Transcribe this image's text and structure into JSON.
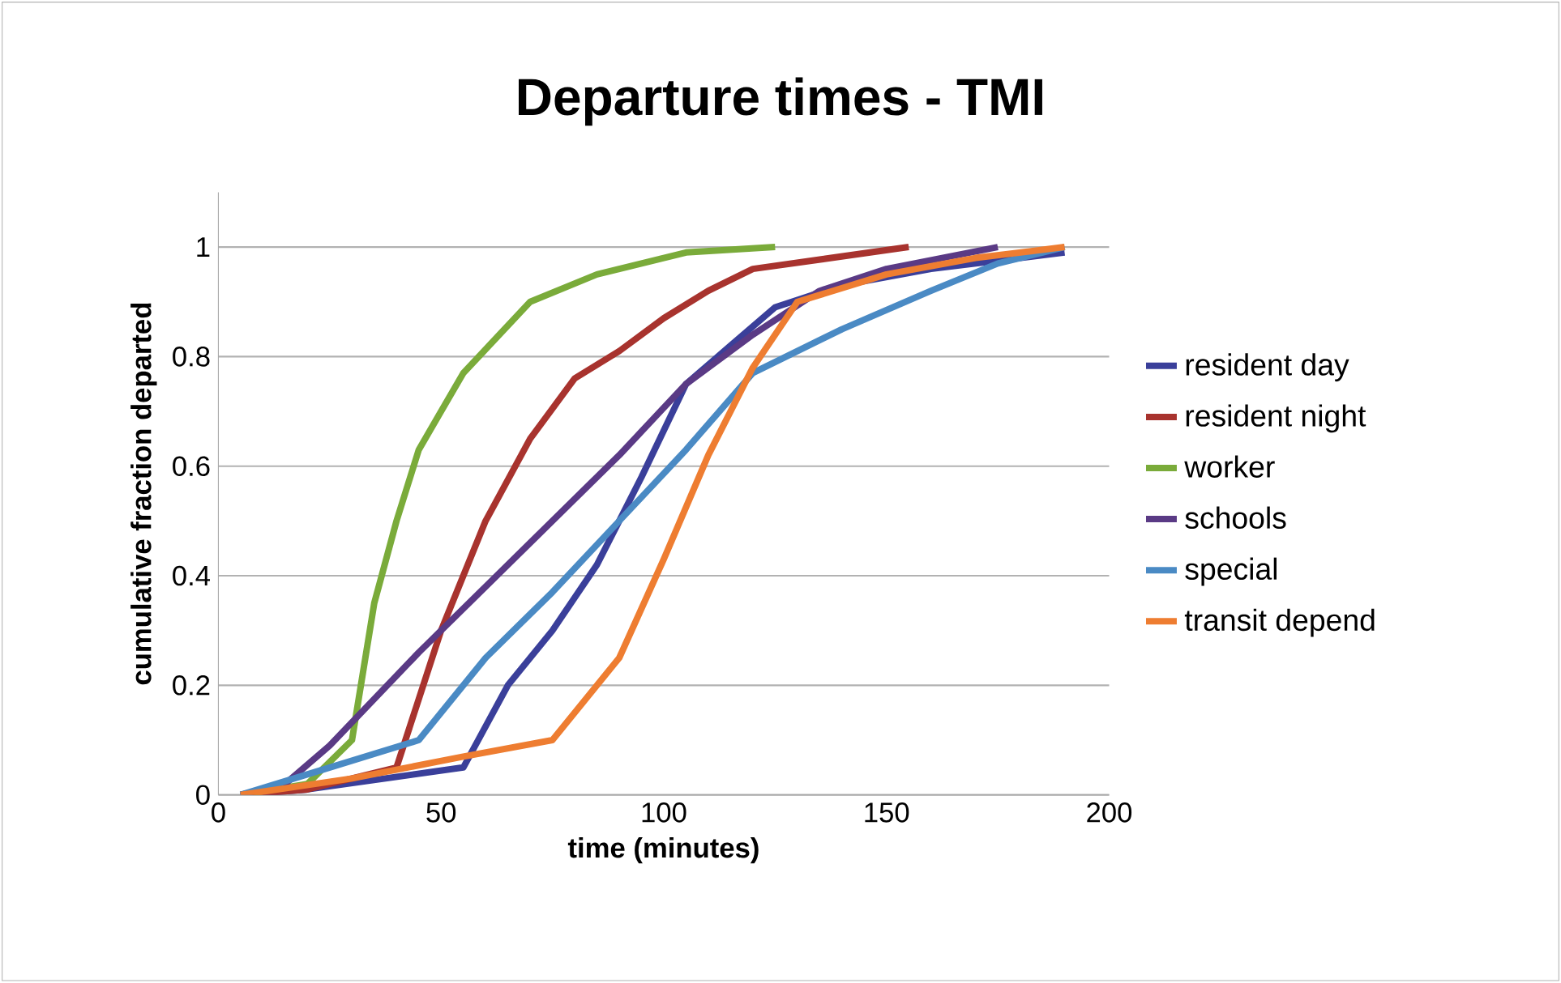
{
  "chart_data": {
    "type": "line",
    "title": "Departure times - TMI",
    "xlabel": "time (minutes)",
    "ylabel": "cumulative fraction departed",
    "xlim": [
      0,
      200
    ],
    "xticks": [
      0,
      50,
      100,
      150,
      200
    ],
    "ylim": [
      0,
      1.1
    ],
    "yticks": [
      0,
      0.2,
      0.4,
      0.6,
      0.8,
      1
    ],
    "grid": "y",
    "legend": "right",
    "line_style": "solid",
    "marker": "none",
    "series": [
      {
        "name": "resident day",
        "color": "#3a3f9a",
        "x": [
          5,
          20,
          55,
          65,
          75,
          85,
          95,
          105,
          115,
          125,
          140,
          160,
          190
        ],
        "values": [
          0,
          0.01,
          0.05,
          0.2,
          0.3,
          0.42,
          0.58,
          0.75,
          0.82,
          0.89,
          0.93,
          0.96,
          0.99
        ]
      },
      {
        "name": "resident night",
        "color": "#a8332e",
        "x": [
          5,
          20,
          40,
          50,
          60,
          70,
          80,
          90,
          100,
          110,
          120,
          155
        ],
        "values": [
          0,
          0.01,
          0.05,
          0.3,
          0.5,
          0.65,
          0.76,
          0.81,
          0.87,
          0.92,
          0.96,
          1
        ]
      },
      {
        "name": "worker",
        "color": "#7aab3a",
        "x": [
          5,
          20,
          30,
          35,
          40,
          45,
          55,
          70,
          85,
          105,
          125
        ],
        "values": [
          0,
          0.02,
          0.1,
          0.35,
          0.5,
          0.63,
          0.77,
          0.9,
          0.95,
          0.99,
          1
        ]
      },
      {
        "name": "schools",
        "color": "#5a3a85",
        "x": [
          5,
          15,
          25,
          45,
          60,
          75,
          90,
          105,
          120,
          135,
          150,
          175
        ],
        "values": [
          0,
          0.02,
          0.09,
          0.26,
          0.38,
          0.5,
          0.62,
          0.75,
          0.84,
          0.92,
          0.96,
          1
        ]
      },
      {
        "name": "special",
        "color": "#4a8ac4",
        "x": [
          5,
          25,
          45,
          60,
          75,
          90,
          105,
          120,
          140,
          160,
          175,
          190
        ],
        "values": [
          0,
          0.05,
          0.1,
          0.25,
          0.37,
          0.5,
          0.63,
          0.77,
          0.85,
          0.92,
          0.97,
          1
        ]
      },
      {
        "name": "transit depend",
        "color": "#ee7d31",
        "x": [
          5,
          30,
          55,
          75,
          90,
          100,
          110,
          120,
          130,
          150,
          170,
          190
        ],
        "values": [
          0,
          0.03,
          0.07,
          0.1,
          0.25,
          0.43,
          0.62,
          0.78,
          0.9,
          0.95,
          0.98,
          1
        ]
      }
    ]
  }
}
